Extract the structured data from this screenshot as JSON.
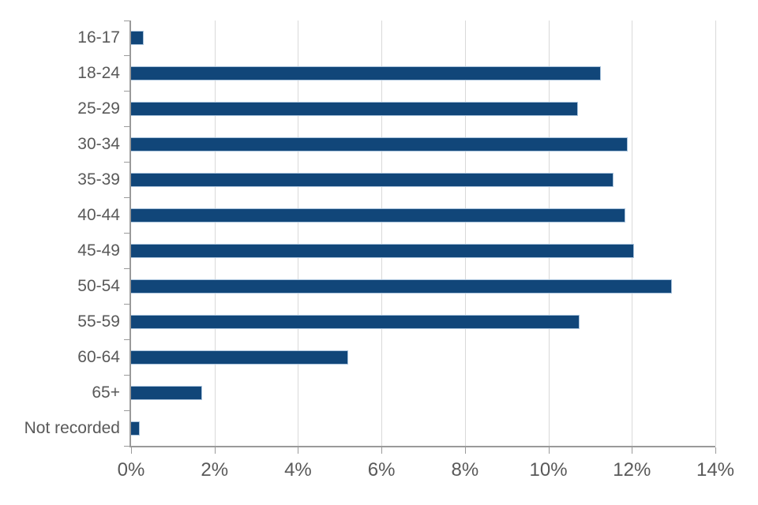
{
  "chart_data": {
    "type": "bar",
    "orientation": "horizontal",
    "title": "",
    "xlabel": "",
    "ylabel": "",
    "categories": [
      "16-17",
      "18-24",
      "25-29",
      "30-34",
      "35-39",
      "40-44",
      "45-49",
      "50-54",
      "55-59",
      "60-64",
      "65+",
      "Not recorded"
    ],
    "values": [
      0.3,
      11.25,
      10.7,
      11.9,
      11.55,
      11.85,
      12.05,
      12.95,
      10.75,
      5.2,
      1.7,
      0.2
    ],
    "x_tick_labels": [
      "0%",
      "2%",
      "4%",
      "6%",
      "8%",
      "10%",
      "12%",
      "14%"
    ],
    "x_tick_values": [
      0,
      2,
      4,
      6,
      8,
      10,
      12,
      14
    ],
    "xlim": [
      0,
      14
    ],
    "grid": true,
    "legend": false
  },
  "colors": {
    "bar_fill": "#114679",
    "bar_border": "#a9c3dc",
    "axis_line": "#9a9a9a",
    "gridline": "#d9d9d9",
    "label_text": "#595959",
    "background": "#ffffff"
  }
}
